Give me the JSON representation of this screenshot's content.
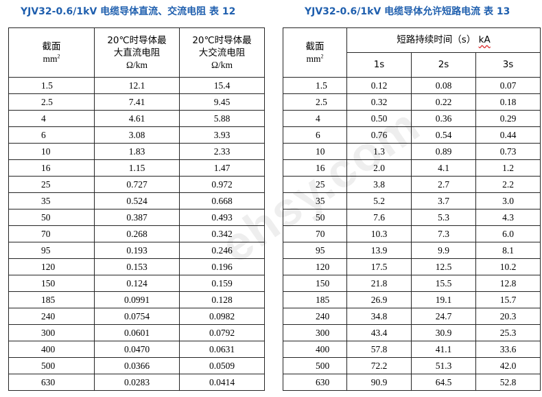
{
  "left": {
    "title": "YJV32-0.6/1kV 电缆导体直流、交流电阻  表 12",
    "header": {
      "col0_line1": "截面",
      "col0_line2": "mm",
      "col0_sup": "2",
      "col1_line1": "20℃时导体最",
      "col1_line2": "大直流电阻",
      "col1_line3": "Ω/km",
      "col2_line1": "20℃时导体最",
      "col2_line2": "大交流电阻",
      "col2_line3": "Ω/km"
    },
    "rows": [
      [
        "1.5",
        "12.1",
        "15.4"
      ],
      [
        "2.5",
        "7.41",
        "9.45"
      ],
      [
        "4",
        "4.61",
        "5.88"
      ],
      [
        "6",
        "3.08",
        "3.93"
      ],
      [
        "10",
        "1.83",
        "2.33"
      ],
      [
        "16",
        "1.15",
        "1.47"
      ],
      [
        "25",
        "0.727",
        "0.972"
      ],
      [
        "35",
        "0.524",
        "0.668"
      ],
      [
        "50",
        "0.387",
        "0.493"
      ],
      [
        "70",
        "0.268",
        "0.342"
      ],
      [
        "95",
        "0.193",
        "0.246"
      ],
      [
        "120",
        "0.153",
        "0.196"
      ],
      [
        "150",
        "0.124",
        "0.159"
      ],
      [
        "185",
        "0.0991",
        "0.128"
      ],
      [
        "240",
        "0.0754",
        "0.0982"
      ],
      [
        "300",
        "0.0601",
        "0.0792"
      ],
      [
        "400",
        "0.0470",
        "0.0631"
      ],
      [
        "500",
        "0.0366",
        "0.0509"
      ],
      [
        "630",
        "0.0283",
        "0.0414"
      ]
    ]
  },
  "right": {
    "title": "YJV32-0.6/1kV 电缆导体允许短路电流  表 13",
    "header": {
      "col0_line1": "截面",
      "col0_line2": "mm",
      "col0_sup": "2",
      "group_label": "短路持续时间（s）",
      "group_unit": "kA",
      "sub": [
        "1s",
        "2s",
        "3s"
      ]
    },
    "rows": [
      [
        "1.5",
        "0.12",
        "0.08",
        "0.07"
      ],
      [
        "2.5",
        "0.32",
        "0.22",
        "0.18"
      ],
      [
        "4",
        "0.50",
        "0.36",
        "0.29"
      ],
      [
        "6",
        "0.76",
        "0.54",
        "0.44"
      ],
      [
        "10",
        "1.3",
        "0.89",
        "0.73"
      ],
      [
        "16",
        "2.0",
        "4.1",
        "1.2"
      ],
      [
        "25",
        "3.8",
        "2.7",
        "2.2"
      ],
      [
        "35",
        "5.2",
        "3.7",
        "3.0"
      ],
      [
        "50",
        "7.6",
        "5.3",
        "4.3"
      ],
      [
        "70",
        "10.3",
        "7.3",
        "6.0"
      ],
      [
        "95",
        "13.9",
        "9.9",
        "8.1"
      ],
      [
        "120",
        "17.5",
        "12.5",
        "10.2"
      ],
      [
        "150",
        "21.8",
        "15.5",
        "12.8"
      ],
      [
        "185",
        "26.9",
        "19.1",
        "15.7"
      ],
      [
        "240",
        "34.8",
        "24.7",
        "20.3"
      ],
      [
        "300",
        "43.4",
        "30.9",
        "25.3"
      ],
      [
        "400",
        "57.8",
        "41.1",
        "33.6"
      ],
      [
        "500",
        "72.2",
        "51.3",
        "42.0"
      ],
      [
        "630",
        "90.9",
        "64.5",
        "52.8"
      ]
    ]
  },
  "watermark": "ehsy.com",
  "colors": {
    "title": "#1f5fae",
    "border": "#222222",
    "text": "#000000",
    "watermark": "rgba(150,150,150,0.16)"
  }
}
